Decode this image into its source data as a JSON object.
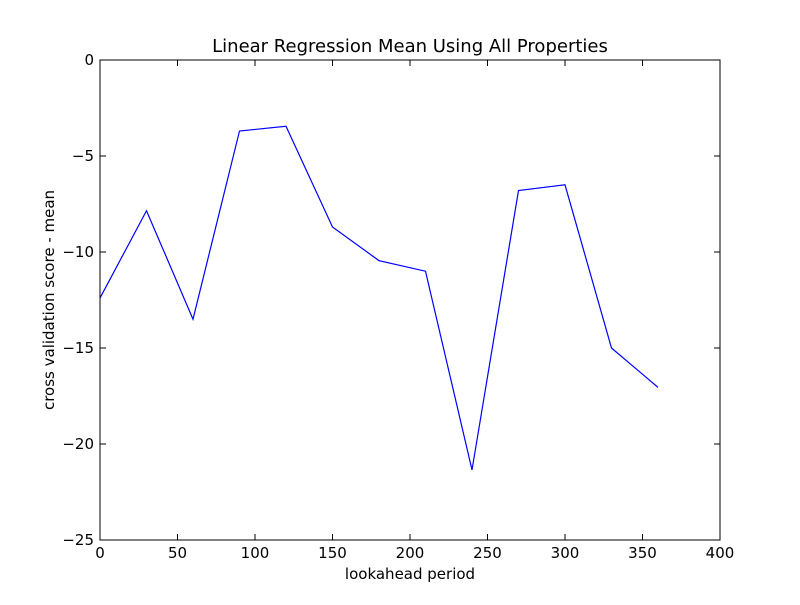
{
  "chart_data": {
    "type": "line",
    "title": "Linear Regression Mean Using All Properties",
    "xlabel": "lookahead period",
    "ylabel": "cross validation score - mean",
    "xlim": [
      0,
      400
    ],
    "ylim": [
      -25,
      0
    ],
    "xticks": [
      0,
      50,
      100,
      150,
      200,
      250,
      300,
      350,
      400
    ],
    "yticks": [
      0,
      -5,
      -10,
      -15,
      -20,
      -25
    ],
    "xtick_labels": [
      "0",
      "50",
      "100",
      "150",
      "200",
      "250",
      "300",
      "350",
      "400"
    ],
    "ytick_labels": [
      "0",
      "−5",
      "−10",
      "−15",
      "−20",
      "−25"
    ],
    "grid": false,
    "series": [
      {
        "color": "#0000ff",
        "x": [
          0,
          30,
          60,
          90,
          120,
          150,
          180,
          210,
          240,
          270,
          300,
          330,
          360
        ],
        "y": [
          -12.4,
          -7.85,
          -13.5,
          -3.7,
          -3.45,
          -8.7,
          -10.45,
          -11.0,
          -21.35,
          -6.8,
          -6.5,
          -15.0,
          -17.05
        ]
      }
    ]
  }
}
